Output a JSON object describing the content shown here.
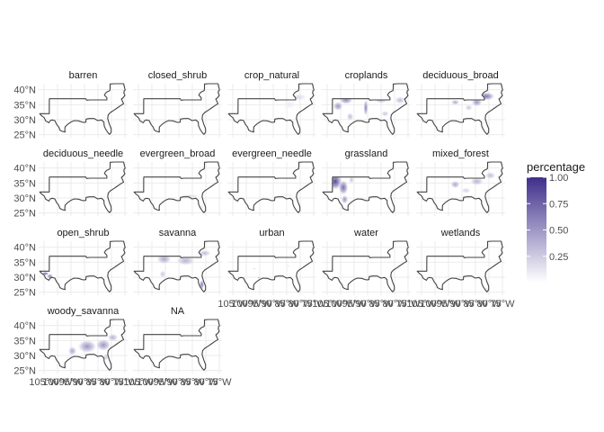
{
  "chart_data": {
    "type": "faceted-map",
    "title": "",
    "xlabel": "",
    "ylabel": "",
    "grid": true,
    "legend": {
      "title": "percentage",
      "position": "right",
      "low_color": "#ffffff",
      "high_color": "#3f2f8a",
      "ticks": [
        {
          "value": 1.0,
          "label": "1.00"
        },
        {
          "value": 0.75,
          "label": "0.75"
        },
        {
          "value": 0.5,
          "label": "0.50"
        },
        {
          "value": 0.25,
          "label": "0.25"
        }
      ],
      "range": [
        0,
        1
      ]
    },
    "y_ticks": [
      {
        "value": 40,
        "label": "40°N"
      },
      {
        "value": 35,
        "label": "35°N"
      },
      {
        "value": 30,
        "label": "30°N"
      },
      {
        "value": 25,
        "label": "25°N"
      }
    ],
    "x_ticks": [
      {
        "value": -105,
        "label": "105°W"
      },
      {
        "value": -100,
        "label": "100°W"
      },
      {
        "value": -95,
        "label": "95°W"
      },
      {
        "value": -90,
        "label": "90°W"
      },
      {
        "value": -85,
        "label": "85°W"
      },
      {
        "value": -80,
        "label": "80°W"
      },
      {
        "value": -75,
        "label": "75°W"
      }
    ],
    "lon_range": [
      -107,
      -74
    ],
    "lat_range": [
      24,
      42
    ],
    "facets": [
      {
        "name": "barren",
        "blobs": []
      },
      {
        "name": "closed_shrub",
        "blobs": []
      },
      {
        "name": "crop_natural",
        "blobs": [
          {
            "lon": -80.5,
            "lat": 37.5,
            "rlon": 3.0,
            "rlat": 1.2,
            "v": 0.2
          },
          {
            "lon": -84,
            "lat": 35,
            "rlon": 2.5,
            "rlat": 1.5,
            "v": 0.1
          }
        ]
      },
      {
        "name": "croplands",
        "blobs": [
          {
            "lon": -98,
            "lat": 36.5,
            "rlon": 2.5,
            "rlat": 1.3,
            "v": 0.6
          },
          {
            "lon": -101,
            "lat": 34.5,
            "rlon": 1.8,
            "rlat": 1.5,
            "v": 0.55
          },
          {
            "lon": -90.7,
            "lat": 34,
            "rlon": 0.8,
            "rlat": 2.8,
            "v": 0.65
          },
          {
            "lon": -85,
            "lat": 36.5,
            "rlon": 2.5,
            "rlat": 1.0,
            "v": 0.4
          },
          {
            "lon": -78,
            "lat": 36.5,
            "rlon": 2.0,
            "rlat": 1.3,
            "v": 0.35
          },
          {
            "lon": -83.5,
            "lat": 32,
            "rlon": 1.5,
            "rlat": 1.0,
            "v": 0.3
          },
          {
            "lon": -96.5,
            "lat": 31,
            "rlon": 1.3,
            "rlat": 1.4,
            "v": 0.35
          }
        ]
      },
      {
        "name": "deciduous_broad",
        "blobs": [
          {
            "lon": -81,
            "lat": 37.8,
            "rlon": 3.2,
            "rlat": 1.4,
            "v": 0.7
          },
          {
            "lon": -84.5,
            "lat": 35.8,
            "rlon": 2.0,
            "rlat": 1.4,
            "v": 0.55
          },
          {
            "lon": -92.5,
            "lat": 35.8,
            "rlon": 1.6,
            "rlat": 0.9,
            "v": 0.45
          },
          {
            "lon": -87.5,
            "lat": 34,
            "rlon": 1.4,
            "rlat": 1.0,
            "v": 0.3
          }
        ]
      },
      {
        "name": "deciduous_needle",
        "blobs": []
      },
      {
        "name": "evergreen_broad",
        "blobs": [
          {
            "lon": -86,
            "lat": 30.6,
            "rlon": 4.0,
            "rlat": 0.7,
            "v": 0.2
          },
          {
            "lon": -81.5,
            "lat": 27,
            "rlon": 1.0,
            "rlat": 1.2,
            "v": 0.1
          }
        ]
      },
      {
        "name": "evergreen_needle",
        "blobs": [
          {
            "lon": -85,
            "lat": 31,
            "rlon": 3.0,
            "rlat": 0.8,
            "v": 0.08
          }
        ]
      },
      {
        "name": "grassland",
        "blobs": [
          {
            "lon": -102,
            "lat": 35.5,
            "rlon": 2.5,
            "rlat": 2.8,
            "v": 0.95
          },
          {
            "lon": -99,
            "lat": 33.5,
            "rlon": 1.8,
            "rlat": 2.5,
            "v": 0.75
          },
          {
            "lon": -98.5,
            "lat": 29.5,
            "rlon": 1.3,
            "rlat": 1.5,
            "v": 0.55
          },
          {
            "lon": -96,
            "lat": 36,
            "rlon": 1.0,
            "rlat": 1.2,
            "v": 0.3
          }
        ]
      },
      {
        "name": "mixed_forest",
        "blobs": [
          {
            "lon": -92.5,
            "lat": 34.5,
            "rlon": 1.8,
            "rlat": 1.3,
            "v": 0.45
          },
          {
            "lon": -84.5,
            "lat": 35.5,
            "rlon": 2.5,
            "rlat": 1.3,
            "v": 0.4
          },
          {
            "lon": -79.5,
            "lat": 37.5,
            "rlon": 2.0,
            "rlat": 1.2,
            "v": 0.35
          },
          {
            "lon": -88.5,
            "lat": 32.5,
            "rlon": 1.8,
            "rlat": 1.0,
            "v": 0.25
          }
        ]
      },
      {
        "name": "open_shrub",
        "blobs": [
          {
            "lon": -104.5,
            "lat": 31.2,
            "rlon": 1.3,
            "rlat": 0.6,
            "v": 0.85
          },
          {
            "lon": -102.8,
            "lat": 30.3,
            "rlon": 1.2,
            "rlat": 0.8,
            "v": 0.7
          }
        ]
      },
      {
        "name": "savanna",
        "blobs": [
          {
            "lon": -95.5,
            "lat": 36,
            "rlon": 2.8,
            "rlat": 1.6,
            "v": 0.45
          },
          {
            "lon": -87.5,
            "lat": 35.5,
            "rlon": 3.5,
            "rlat": 1.6,
            "v": 0.4
          },
          {
            "lon": -80.5,
            "lat": 38,
            "rlon": 2.5,
            "rlat": 1.1,
            "v": 0.35
          },
          {
            "lon": -81.5,
            "lat": 27.5,
            "rlon": 0.9,
            "rlat": 1.7,
            "v": 0.7
          },
          {
            "lon": -96,
            "lat": 31,
            "rlon": 1.2,
            "rlat": 1.3,
            "v": 0.3
          }
        ]
      },
      {
        "name": "urban",
        "blobs": [
          {
            "lon": -95.4,
            "lat": 29.8,
            "rlon": 0.3,
            "rlat": 0.3,
            "v": 0.7
          },
          {
            "lon": -84.4,
            "lat": 33.8,
            "rlon": 0.3,
            "rlat": 0.3,
            "v": 0.3
          },
          {
            "lon": -97,
            "lat": 32.8,
            "rlon": 0.35,
            "rlat": 0.3,
            "v": 0.4
          }
        ]
      },
      {
        "name": "water",
        "blobs": [
          {
            "lon": -90,
            "lat": 29.5,
            "rlon": 1.0,
            "rlat": 0.5,
            "v": 0.12
          }
        ]
      },
      {
        "name": "wetlands",
        "blobs": [
          {
            "lon": -91,
            "lat": 30,
            "rlon": 1.5,
            "rlat": 0.6,
            "v": 0.12
          },
          {
            "lon": -81,
            "lat": 26,
            "rlon": 0.8,
            "rlat": 0.7,
            "v": 0.15
          }
        ]
      },
      {
        "name": "woody_savanna",
        "blobs": [
          {
            "lon": -89,
            "lat": 33,
            "rlon": 3.5,
            "rlat": 2.2,
            "v": 0.55
          },
          {
            "lon": -83,
            "lat": 33.5,
            "rlon": 2.8,
            "rlat": 2.0,
            "v": 0.55
          },
          {
            "lon": -94.5,
            "lat": 31.5,
            "rlon": 1.6,
            "rlat": 1.5,
            "v": 0.45
          },
          {
            "lon": -79.5,
            "lat": 36,
            "rlon": 2.0,
            "rlat": 1.3,
            "v": 0.4
          },
          {
            "lon": -82,
            "lat": 29.5,
            "rlon": 1.0,
            "rlat": 1.2,
            "v": 0.3
          }
        ]
      },
      {
        "name": "NA",
        "blobs": []
      }
    ]
  }
}
